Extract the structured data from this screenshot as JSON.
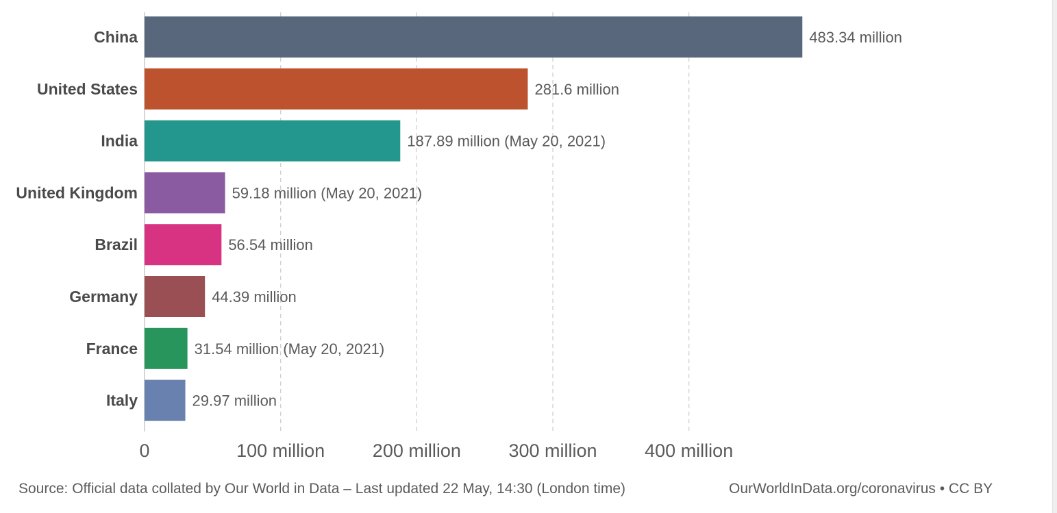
{
  "chart_data": {
    "type": "bar",
    "orientation": "horizontal",
    "categories": [
      "China",
      "United States",
      "India",
      "United Kingdom",
      "Brazil",
      "Germany",
      "France",
      "Italy"
    ],
    "values": [
      483.34,
      281.6,
      187.89,
      59.18,
      56.54,
      44.39,
      31.54,
      29.97
    ],
    "value_labels": [
      "483.34 million",
      "281.6 million",
      "187.89 million (May 20, 2021)",
      "59.18 million (May 20, 2021)",
      "56.54 million",
      "44.39 million",
      "31.54 million (May 20, 2021)",
      "29.97 million"
    ],
    "colors": [
      "#58677c",
      "#bd532e",
      "#23978d",
      "#8a5ba1",
      "#d83383",
      "#9a4f55",
      "#28965c",
      "#6981ae"
    ],
    "x_ticks": [
      0,
      100,
      200,
      300,
      400
    ],
    "x_tick_labels": [
      "0",
      "100 million",
      "200 million",
      "300 million",
      "400 million"
    ],
    "xlim": [
      0,
      483.34
    ],
    "grid": true,
    "xlabel": "",
    "ylabel": ""
  },
  "footer": {
    "source": "Source: Official data collated by Our World in Data – Last updated 22 May, 14:30 (London time)",
    "credit_link": "OurWorldInData.org/coronavirus",
    "license": "• CC BY"
  },
  "colors": {
    "gridline": "#d0d0d0",
    "axis": "#c9c9c9",
    "text": "#5b5b5b"
  }
}
